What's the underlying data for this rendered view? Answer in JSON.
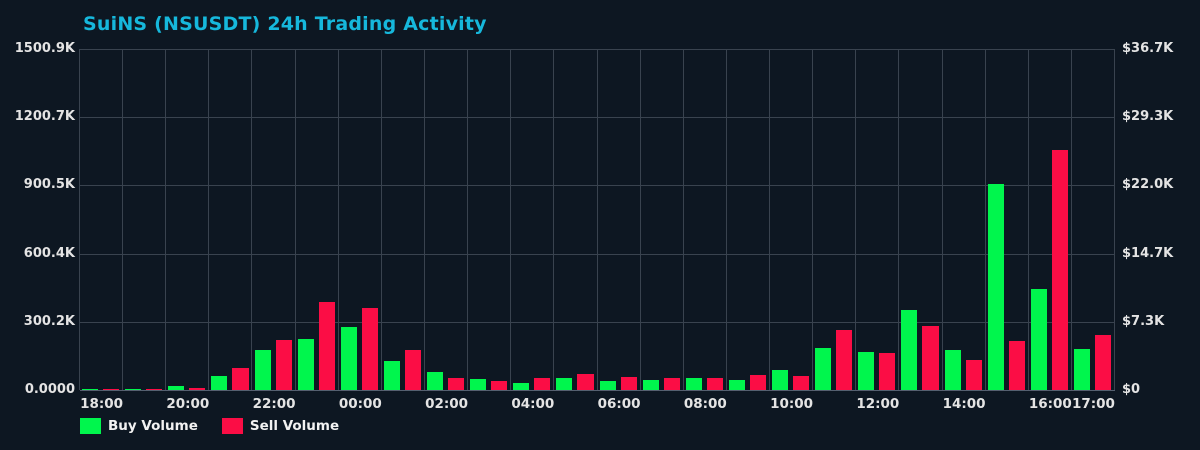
{
  "title": "SuiNS (NSUSDT) 24h Trading Activity",
  "colors": {
    "background": "#0d1722",
    "grid": "#39434f",
    "title": "#16b8dc",
    "axis_text": "#e4e4e4",
    "buy": "#00f64d",
    "sell": "#fb0d45"
  },
  "chart_data": {
    "type": "bar",
    "title": "SuiNS (NSUSDT) 24h Trading Activity",
    "categories": [
      "18:00",
      "19:00",
      "20:00",
      "21:00",
      "22:00",
      "23:00",
      "00:00",
      "01:00",
      "02:00",
      "03:00",
      "04:00",
      "05:00",
      "06:00",
      "07:00",
      "08:00",
      "09:00",
      "10:00",
      "11:00",
      "12:00",
      "13:00",
      "14:00",
      "15:00",
      "16:00",
      "17:00"
    ],
    "series": [
      {
        "name": "Buy Volume",
        "color": "#00f64d",
        "values": [
          6000,
          6000,
          16000,
          60000,
          176000,
          224000,
          279000,
          129000,
          78000,
          47000,
          31000,
          54000,
          40000,
          43000,
          51000,
          44000,
          88000,
          185000,
          169000,
          352000,
          176000,
          905000,
          443000,
          182000
        ]
      },
      {
        "name": "Sell Volume",
        "color": "#fb0d45",
        "values": [
          3000,
          3000,
          9000,
          95000,
          220000,
          386000,
          360000,
          176000,
          51000,
          38000,
          54000,
          69000,
          58000,
          54000,
          54000,
          66000,
          63000,
          264000,
          164000,
          283000,
          132000,
          217000,
          1056000,
          241000
        ]
      }
    ],
    "y_left": {
      "ticks_top_to_bottom": [
        "1500.9K",
        "1200.7K",
        "900.5K",
        "600.4K",
        "300.2K",
        "0.0000"
      ],
      "max": 1500900
    },
    "y_right": {
      "ticks_top_to_bottom": [
        "$36.7K",
        "$29.3K",
        "$22.0K",
        "$14.7K",
        "$7.3K",
        "$0"
      ]
    },
    "x_ticks": [
      {
        "label": "18:00",
        "group": 0
      },
      {
        "label": "20:00",
        "group": 2
      },
      {
        "label": "22:00",
        "group": 4
      },
      {
        "label": "00:00",
        "group": 6
      },
      {
        "label": "02:00",
        "group": 8
      },
      {
        "label": "04:00",
        "group": 10
      },
      {
        "label": "06:00",
        "group": 12
      },
      {
        "label": "08:00",
        "group": 14
      },
      {
        "label": "10:00",
        "group": 16
      },
      {
        "label": "12:00",
        "group": 18
      },
      {
        "label": "14:00",
        "group": 20
      },
      {
        "label": "16:00",
        "group": 22
      },
      {
        "label": "17:00",
        "group": 23
      }
    ],
    "grid": true,
    "legend_position": "bottom-left"
  },
  "legend": {
    "buy_label": "Buy Volume",
    "sell_label": "Sell Volume"
  }
}
